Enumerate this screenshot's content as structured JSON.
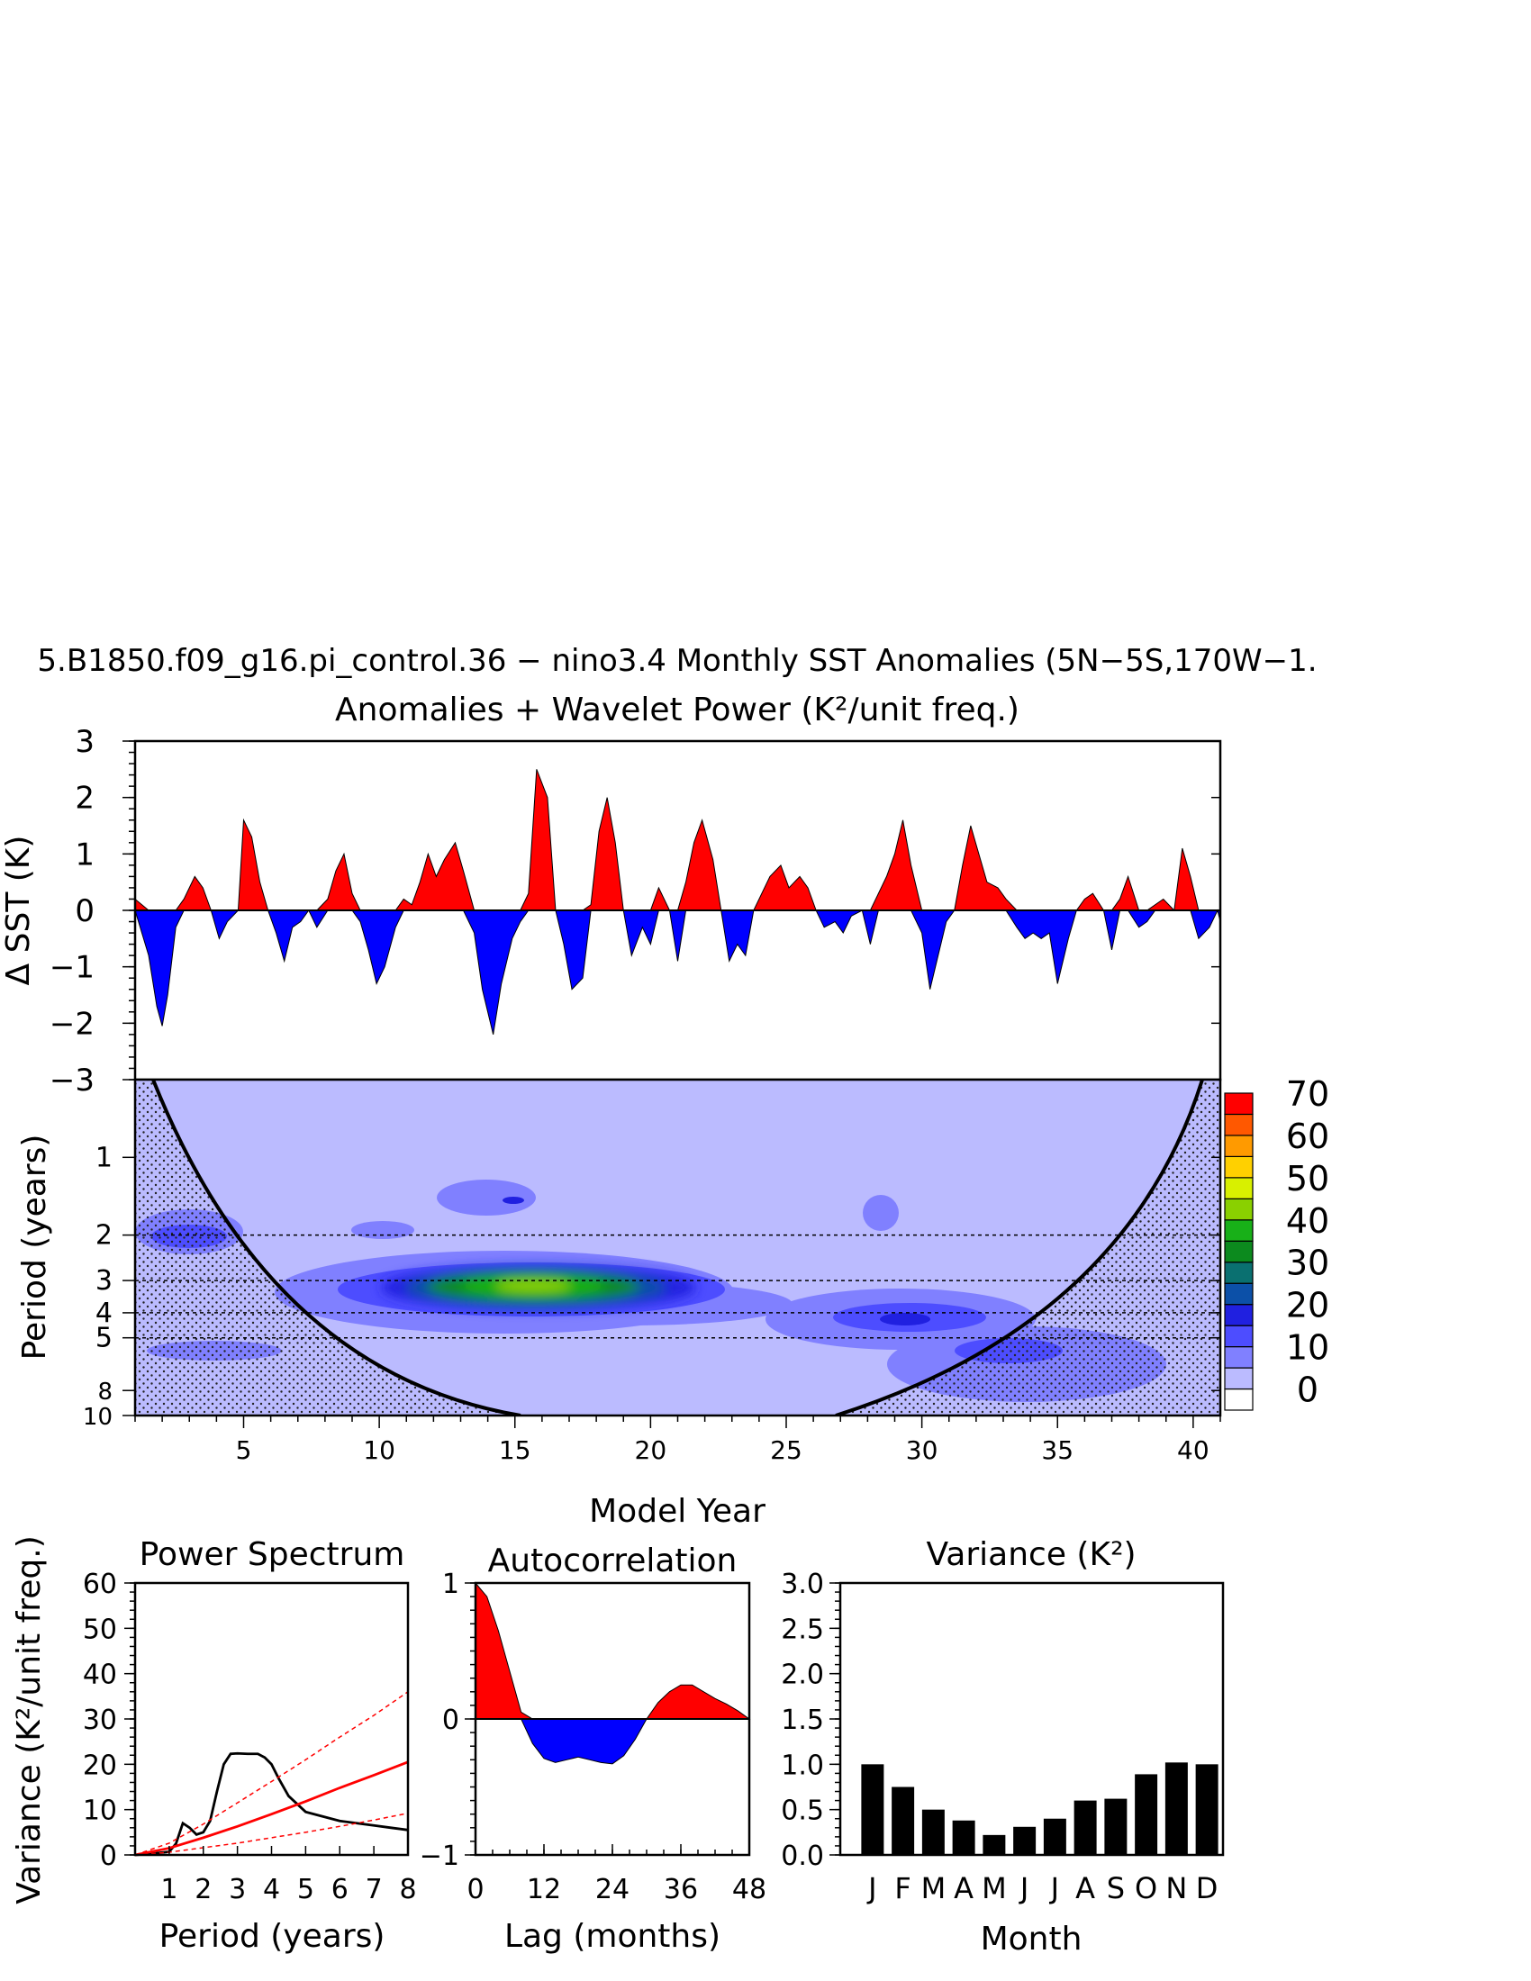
{
  "title_line1": "5.B1850.f09_g16.pi_control.36 − nino3.4 Monthly SST Anomalies (5N−5S,170W−1.",
  "title_line2": "Anomalies + Wavelet Power (K²/unit freq.)",
  "chart_data": [
    {
      "type": "area",
      "name": "sst_anomalies",
      "ylabel": "Δ SST (K)",
      "xlim": [
        1,
        41
      ],
      "ylim": [
        -3,
        3
      ],
      "yticks": [
        3,
        2,
        1,
        0,
        -1,
        -2,
        -3
      ],
      "ytick_labels": [
        "3",
        "2",
        "1",
        "0",
        "−1",
        "−2",
        "−3"
      ],
      "positive_color": "#ff0000",
      "negative_color": "#0000ff",
      "x": [
        1.0,
        1.5,
        1.8,
        2.0,
        2.2,
        2.5,
        2.8,
        3.2,
        3.5,
        3.8,
        4.1,
        4.4,
        4.8,
        5.0,
        5.3,
        5.6,
        5.9,
        6.2,
        6.5,
        6.8,
        7.1,
        7.4,
        7.7,
        8.1,
        8.4,
        8.7,
        9.0,
        9.3,
        9.6,
        9.9,
        10.2,
        10.6,
        10.9,
        11.2,
        11.5,
        11.8,
        12.1,
        12.4,
        12.8,
        13.1,
        13.5,
        13.8,
        14.2,
        14.5,
        14.9,
        15.2,
        15.5,
        15.8,
        16.2,
        16.5,
        16.8,
        17.1,
        17.5,
        17.8,
        18.1,
        18.4,
        18.7,
        19.0,
        19.3,
        19.7,
        20.0,
        20.3,
        20.7,
        21.0,
        21.3,
        21.6,
        21.9,
        22.3,
        22.6,
        22.9,
        23.2,
        23.5,
        23.8,
        24.1,
        24.4,
        24.8,
        25.1,
        25.5,
        25.8,
        26.1,
        26.4,
        26.8,
        27.1,
        27.4,
        27.8,
        28.1,
        28.4,
        28.7,
        29.0,
        29.3,
        29.6,
        30.0,
        30.3,
        30.6,
        30.9,
        31.2,
        31.5,
        31.8,
        32.1,
        32.4,
        32.8,
        33.1,
        33.5,
        33.8,
        34.1,
        34.4,
        34.7,
        35.0,
        35.4,
        35.7,
        36.0,
        36.3,
        36.7,
        37.0,
        37.3,
        37.6,
        38.0,
        38.3,
        38.6,
        38.9,
        39.3,
        39.6,
        39.9,
        40.2,
        40.6,
        40.9,
        41.0
      ],
      "y": [
        0.2,
        -0.8,
        -1.7,
        -2.05,
        -1.5,
        -0.3,
        0.2,
        0.6,
        0.4,
        0.0,
        -0.5,
        -0.2,
        0.0,
        1.6,
        1.3,
        0.5,
        0.0,
        -0.4,
        -0.9,
        -0.3,
        -0.2,
        0.0,
        -0.3,
        0.2,
        0.7,
        1.0,
        0.3,
        -0.2,
        -0.7,
        -1.3,
        -1.0,
        -0.3,
        0.2,
        0.1,
        0.5,
        1.0,
        0.6,
        0.9,
        1.2,
        0.7,
        -0.4,
        -1.4,
        -2.2,
        -1.3,
        -0.5,
        -0.2,
        0.3,
        2.5,
        2.0,
        0.0,
        -0.6,
        -1.4,
        -1.2,
        0.1,
        1.4,
        2.0,
        1.2,
        0.0,
        -0.8,
        -0.3,
        -0.6,
        0.4,
        0.0,
        -0.9,
        0.5,
        1.2,
        1.6,
        0.9,
        0.0,
        -0.9,
        -0.6,
        -0.8,
        0.0,
        0.3,
        0.6,
        0.8,
        0.4,
        0.6,
        0.4,
        0.0,
        -0.3,
        -0.2,
        -0.4,
        -0.1,
        0.0,
        -0.6,
        0.3,
        0.6,
        1.0,
        1.6,
        0.8,
        -0.4,
        -1.4,
        -0.8,
        -0.2,
        0.0,
        0.8,
        1.5,
        1.0,
        0.5,
        0.4,
        0.2,
        -0.3,
        -0.5,
        -0.4,
        -0.5,
        -0.4,
        -1.3,
        -0.5,
        0.0,
        0.2,
        0.3,
        0.0,
        -0.7,
        0.2,
        0.6,
        -0.3,
        -0.2,
        0.1,
        0.2,
        0.0,
        1.1,
        0.6,
        -0.5,
        -0.3,
        0.0,
        -0.2
      ]
    },
    {
      "type": "heatmap",
      "name": "wavelet_power",
      "xlabel": "Model Year",
      "ylabel": "Period (years)",
      "xlim": [
        1,
        41
      ],
      "ylim": [
        0.5,
        10
      ],
      "xticks": [
        5,
        10,
        15,
        20,
        25,
        30,
        35,
        40
      ],
      "yticks": [
        1,
        2,
        3,
        4,
        5,
        8,
        10
      ],
      "significance_periods": [
        2,
        3,
        4,
        5
      ],
      "colorbar_levels": [
        "0",
        "10",
        "20",
        "30",
        "40",
        "50",
        "60",
        "70"
      ],
      "colorbar_colors": [
        "#ffffff",
        "#bbbbff",
        "#8080ff",
        "#4d4dff",
        "#2020e0",
        "#0c50a8",
        "#0a7070",
        "#0c8a1e",
        "#18b018",
        "#8ad000",
        "#d8f000",
        "#ffd000",
        "#ff9a00",
        "#ff5800",
        "#ff0000"
      ],
      "features": [
        {
          "x": 16,
          "period": 3.2,
          "power": 45
        },
        {
          "x": 29,
          "period": 4.3,
          "power": 15
        },
        {
          "x": 3,
          "period": 2.0,
          "power": 12
        },
        {
          "x": 15,
          "period": 1.4,
          "power": 12
        }
      ]
    },
    {
      "type": "line",
      "name": "power_spectrum",
      "title": "Power Spectrum",
      "xlabel": "Period (years)",
      "ylabel": "Variance (K²/unit freq.)",
      "xlim": [
        0,
        8
      ],
      "ylim": [
        0,
        60
      ],
      "xticks": [
        1,
        2,
        3,
        4,
        5,
        6,
        7,
        8
      ],
      "yticks": [
        0,
        10,
        20,
        30,
        40,
        50,
        60
      ],
      "series": [
        {
          "name": "spectrum",
          "color": "#000000",
          "x": [
            0.0,
            0.5,
            1.0,
            1.2,
            1.4,
            1.6,
            1.8,
            2.0,
            2.2,
            2.4,
            2.6,
            2.8,
            3.0,
            3.3,
            3.6,
            3.8,
            4.0,
            4.2,
            4.5,
            5.0,
            5.5,
            6.0,
            6.5,
            7.0,
            7.5,
            8.0
          ],
          "y": [
            0,
            0.3,
            0.7,
            2.5,
            7,
            6,
            4.5,
            5,
            7.5,
            14,
            20,
            22.3,
            22.4,
            22.3,
            22.3,
            21.5,
            20,
            17,
            13,
            9.5,
            8.5,
            7.5,
            7,
            6.5,
            6,
            5.5
          ]
        },
        {
          "name": "red-noise",
          "color": "#ff0000",
          "dashed": false,
          "x": [
            0,
            1,
            2,
            3,
            4,
            5,
            6,
            7,
            8
          ],
          "y": [
            0,
            1.5,
            3.8,
            6.3,
            9,
            11.8,
            14.8,
            17.6,
            20.5
          ]
        },
        {
          "name": "upper",
          "color": "#ff0000",
          "dashed": true,
          "x": [
            0,
            1,
            2,
            3,
            4,
            5,
            6,
            7,
            8
          ],
          "y": [
            0,
            2.6,
            6.8,
            11.5,
            16.2,
            21,
            26,
            30.8,
            36
          ]
        },
        {
          "name": "lower",
          "color": "#ff0000",
          "dashed": true,
          "x": [
            0,
            1,
            2,
            3,
            4,
            5,
            6,
            7,
            8
          ],
          "y": [
            0,
            0.6,
            1.6,
            2.6,
            3.8,
            5,
            6.3,
            7.7,
            9.2
          ]
        }
      ]
    },
    {
      "type": "area",
      "name": "autocorrelation",
      "title": "Autocorrelation",
      "xlabel": "Lag (months)",
      "xlim": [
        0,
        48
      ],
      "ylim": [
        -1,
        1
      ],
      "xticks": [
        0,
        12,
        24,
        36,
        48
      ],
      "ytick_labels": [
        "1",
        "0",
        "−1"
      ],
      "x": [
        0,
        2,
        4,
        6,
        8,
        10,
        12,
        14,
        16,
        18,
        20,
        22,
        24,
        26,
        28,
        30,
        32,
        34,
        36,
        38,
        40,
        42,
        44,
        46,
        48
      ],
      "y": [
        1.0,
        0.9,
        0.65,
        0.35,
        0.05,
        -0.18,
        -0.29,
        -0.32,
        -0.3,
        -0.28,
        -0.3,
        -0.32,
        -0.33,
        -0.27,
        -0.15,
        0.0,
        0.12,
        0.2,
        0.25,
        0.25,
        0.2,
        0.15,
        0.11,
        0.06,
        0.0
      ]
    },
    {
      "type": "bar",
      "name": "monthly_variance",
      "title": "Variance (K²)",
      "xlabel": "Month",
      "categories": [
        "J",
        "F",
        "M",
        "A",
        "M",
        "J",
        "J",
        "A",
        "S",
        "O",
        "N",
        "D"
      ],
      "values": [
        1.0,
        0.75,
        0.5,
        0.38,
        0.22,
        0.31,
        0.4,
        0.6,
        0.62,
        0.89,
        1.02,
        1.0
      ],
      "ylim": [
        0,
        3
      ],
      "yticks": [
        "0.0",
        "0.5",
        "1.0",
        "1.5",
        "2.0",
        "2.5",
        "3.0"
      ],
      "color": "#000000"
    }
  ]
}
